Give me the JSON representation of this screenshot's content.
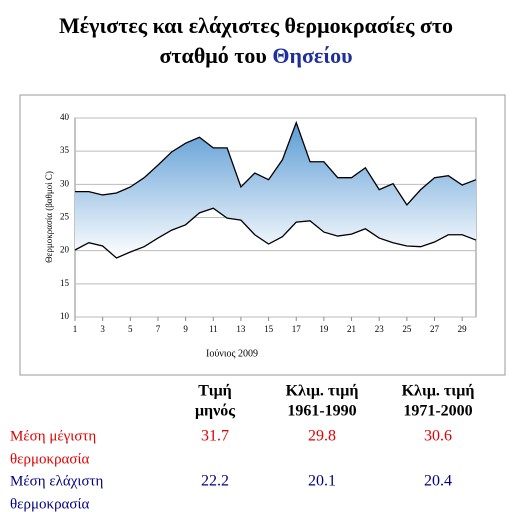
{
  "chart_data": {
    "type": "line",
    "title": "Μέγιστες και ελάχιστες θερμοκρασίες στο",
    "title_line2": "σταθμό του",
    "title_place": "Θησείου",
    "ylabel": "Θερμοκρασία (βαθμοί C)",
    "xlabel": "Ιούνιος 2009",
    "x": [
      1,
      2,
      3,
      4,
      5,
      6,
      7,
      8,
      9,
      10,
      11,
      12,
      13,
      14,
      15,
      16,
      17,
      18,
      19,
      20,
      21,
      22,
      23,
      24,
      25,
      26,
      27,
      28,
      29,
      30
    ],
    "series": [
      {
        "color": "#000000",
        "values": [
          28.9,
          28.9,
          28.4,
          28.7,
          29.6,
          31.0,
          32.9,
          34.9,
          36.2,
          37.1,
          35.5,
          35.5,
          29.6,
          31.7,
          30.7,
          33.7,
          39.3,
          33.4,
          33.4,
          31.0,
          31.0,
          32.5,
          29.2,
          30.1,
          26.9,
          29.2,
          31.0,
          31.3,
          29.9,
          30.7
        ]
      },
      {
        "color": "#000000",
        "values": [
          20.1,
          21.2,
          20.7,
          18.9,
          19.8,
          20.6,
          21.9,
          23.1,
          23.9,
          25.7,
          26.4,
          24.9,
          24.6,
          22.4,
          21.0,
          22.1,
          24.3,
          24.5,
          22.8,
          22.2,
          22.5,
          23.3,
          21.9,
          21.2,
          20.7,
          20.6,
          21.3,
          22.4,
          22.4,
          21.6
        ]
      }
    ],
    "fill_color_top": "#5b9bd5",
    "fill_color_bottom": "#ffffff",
    "xlim": [
      1,
      30
    ],
    "xticks": [
      1,
      3,
      5,
      7,
      9,
      11,
      13,
      15,
      17,
      19,
      21,
      23,
      25,
      27,
      29
    ],
    "ylim": [
      10,
      40
    ],
    "yticks": [
      10,
      15,
      20,
      25,
      30,
      35,
      40
    ],
    "grid": true
  },
  "table": {
    "headers": [
      [
        "Τιμή",
        "μηνός"
      ],
      [
        "Κλιμ. τιμή",
        "1961-1990"
      ],
      [
        "Κλιμ. τιμή",
        "1971-2000"
      ]
    ],
    "rows": [
      {
        "label": [
          "Μέση μέγιστη",
          "θερμοκρασία"
        ],
        "color": "#e00000",
        "values": [
          31.7,
          29.8,
          30.6
        ]
      },
      {
        "label": [
          "Μέση ελάχιστη",
          "θερμοκρασία"
        ],
        "color": "#000080",
        "values": [
          22.2,
          20.1,
          20.4
        ]
      }
    ]
  }
}
